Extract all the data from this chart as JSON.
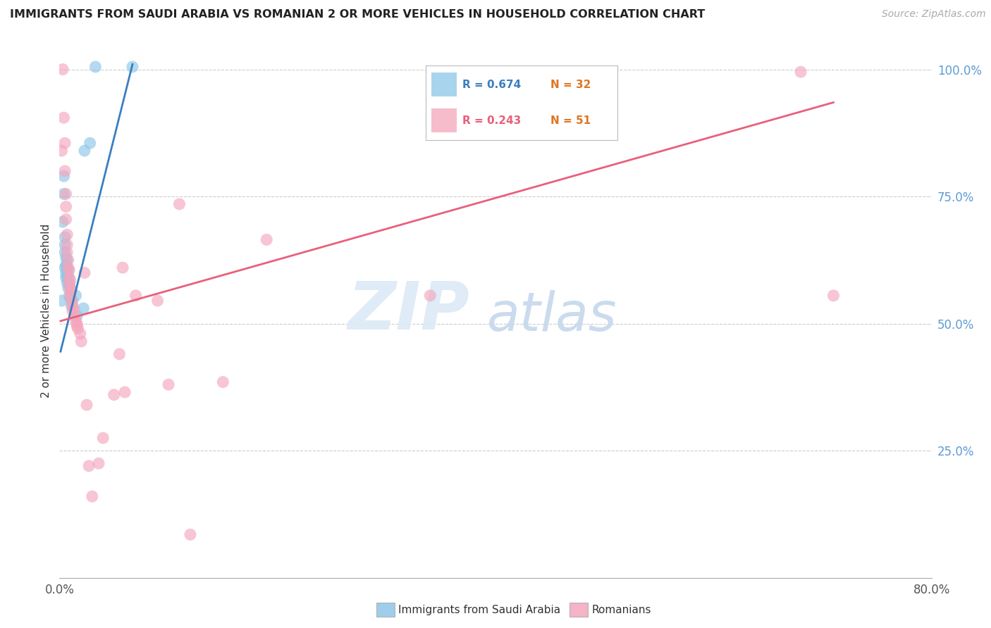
{
  "title": "IMMIGRANTS FROM SAUDI ARABIA VS ROMANIAN 2 OR MORE VEHICLES IN HOUSEHOLD CORRELATION CHART",
  "source": "Source: ZipAtlas.com",
  "ylabel": "2 or more Vehicles in Household",
  "xlim": [
    0.0,
    0.8
  ],
  "ylim": [
    0.0,
    1.05
  ],
  "xticks": [
    0.0,
    0.1,
    0.2,
    0.3,
    0.4,
    0.5,
    0.6,
    0.7,
    0.8
  ],
  "yticks_right": [
    0.25,
    0.5,
    0.75,
    1.0
  ],
  "legend_blue_R": "R = 0.674",
  "legend_blue_N": "N = 32",
  "legend_pink_R": "R = 0.243",
  "legend_pink_N": "N = 51",
  "blue_color": "#8dc6e8",
  "pink_color": "#f4a6bc",
  "blue_line_color": "#3a7ebf",
  "pink_line_color": "#e8607a",
  "watermark_zip": "ZIP",
  "watermark_atlas": "atlas",
  "blue_dots": [
    [
      0.002,
      0.545
    ],
    [
      0.003,
      0.7
    ],
    [
      0.004,
      0.755
    ],
    [
      0.004,
      0.79
    ],
    [
      0.005,
      0.64
    ],
    [
      0.005,
      0.655
    ],
    [
      0.005,
      0.67
    ],
    [
      0.005,
      0.61
    ],
    [
      0.006,
      0.63
    ],
    [
      0.006,
      0.615
    ],
    [
      0.006,
      0.6
    ],
    [
      0.006,
      0.59
    ],
    [
      0.007,
      0.625
    ],
    [
      0.007,
      0.61
    ],
    [
      0.007,
      0.595
    ],
    [
      0.007,
      0.58
    ],
    [
      0.008,
      0.605
    ],
    [
      0.008,
      0.59
    ],
    [
      0.008,
      0.57
    ],
    [
      0.009,
      0.58
    ],
    [
      0.009,
      0.555
    ],
    [
      0.01,
      0.57
    ],
    [
      0.01,
      0.55
    ],
    [
      0.011,
      0.535
    ],
    [
      0.012,
      0.545
    ],
    [
      0.015,
      0.555
    ],
    [
      0.016,
      0.515
    ],
    [
      0.022,
      0.53
    ],
    [
      0.023,
      0.84
    ],
    [
      0.028,
      0.855
    ],
    [
      0.033,
      1.005
    ],
    [
      0.067,
      1.005
    ]
  ],
  "pink_dots": [
    [
      0.002,
      0.84
    ],
    [
      0.003,
      1.0
    ],
    [
      0.004,
      0.905
    ],
    [
      0.005,
      0.855
    ],
    [
      0.005,
      0.8
    ],
    [
      0.006,
      0.755
    ],
    [
      0.006,
      0.73
    ],
    [
      0.006,
      0.705
    ],
    [
      0.007,
      0.675
    ],
    [
      0.007,
      0.655
    ],
    [
      0.007,
      0.64
    ],
    [
      0.008,
      0.625
    ],
    [
      0.008,
      0.61
    ],
    [
      0.009,
      0.605
    ],
    [
      0.009,
      0.59
    ],
    [
      0.009,
      0.575
    ],
    [
      0.01,
      0.585
    ],
    [
      0.01,
      0.565
    ],
    [
      0.01,
      0.555
    ],
    [
      0.011,
      0.565
    ],
    [
      0.011,
      0.545
    ],
    [
      0.012,
      0.535
    ],
    [
      0.012,
      0.525
    ],
    [
      0.013,
      0.53
    ],
    [
      0.014,
      0.515
    ],
    [
      0.015,
      0.505
    ],
    [
      0.016,
      0.5
    ],
    [
      0.016,
      0.495
    ],
    [
      0.017,
      0.49
    ],
    [
      0.019,
      0.48
    ],
    [
      0.02,
      0.465
    ],
    [
      0.023,
      0.6
    ],
    [
      0.025,
      0.34
    ],
    [
      0.027,
      0.22
    ],
    [
      0.03,
      0.16
    ],
    [
      0.036,
      0.225
    ],
    [
      0.04,
      0.275
    ],
    [
      0.05,
      0.36
    ],
    [
      0.055,
      0.44
    ],
    [
      0.058,
      0.61
    ],
    [
      0.06,
      0.365
    ],
    [
      0.07,
      0.555
    ],
    [
      0.09,
      0.545
    ],
    [
      0.1,
      0.38
    ],
    [
      0.11,
      0.735
    ],
    [
      0.12,
      0.085
    ],
    [
      0.15,
      0.385
    ],
    [
      0.19,
      0.665
    ],
    [
      0.34,
      0.555
    ],
    [
      0.68,
      0.995
    ],
    [
      0.71,
      0.555
    ]
  ],
  "blue_trendline_x": [
    0.001,
    0.067
  ],
  "blue_trendline_y": [
    0.445,
    1.01
  ],
  "pink_trendline_x": [
    0.001,
    0.71
  ],
  "pink_trendline_y": [
    0.505,
    0.935
  ]
}
